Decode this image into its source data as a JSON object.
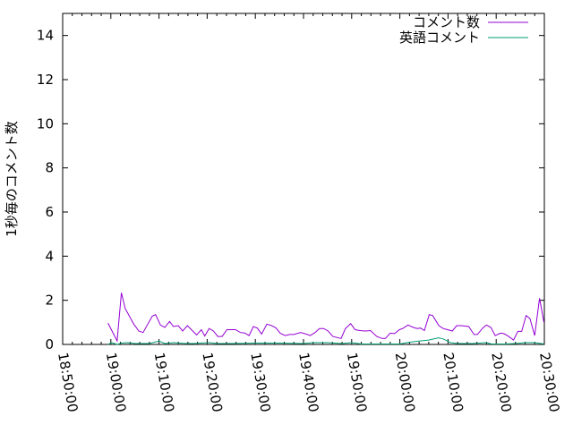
{
  "chart_data": {
    "type": "line",
    "title": "",
    "xlabel": "",
    "ylabel": "1秒毎のコメント数",
    "xlim": [
      "18:50:00",
      "20:30:00"
    ],
    "ylim": [
      0,
      15
    ],
    "x_ticks": [
      "18:50:00",
      "19:00:00",
      "19:10:00",
      "19:20:00",
      "19:30:00",
      "19:40:00",
      "19:50:00",
      "20:00:00",
      "20:10:00",
      "20:20:00",
      "20:30:00"
    ],
    "y_ticks": [
      "0",
      "2",
      "4",
      "6",
      "8",
      "10",
      "12",
      "14"
    ],
    "grid": false,
    "legend_position": "top-right",
    "series": [
      {
        "name": "コメント数",
        "color": "#9400d3",
        "points": [
          [
            "18:59:24",
            0.97
          ],
          [
            "19:01:18",
            0.16
          ],
          [
            "19:02:12",
            2.34
          ],
          [
            "19:03:00",
            1.62
          ],
          [
            "19:04:42",
            0.94
          ],
          [
            "19:05:48",
            0.61
          ],
          [
            "19:06:42",
            0.54
          ],
          [
            "19:08:36",
            1.28
          ],
          [
            "19:09:18",
            1.35
          ],
          [
            "19:10:18",
            0.88
          ],
          [
            "19:11:12",
            0.77
          ],
          [
            "19:12:12",
            1.04
          ],
          [
            "19:13:00",
            0.81
          ],
          [
            "19:14:00",
            0.85
          ],
          [
            "19:14:54",
            0.61
          ],
          [
            "19:15:54",
            0.85
          ],
          [
            "19:17:48",
            0.43
          ],
          [
            "19:18:48",
            0.67
          ],
          [
            "19:19:30",
            0.38
          ],
          [
            "19:20:24",
            0.72
          ],
          [
            "19:21:18",
            0.61
          ],
          [
            "19:22:12",
            0.36
          ],
          [
            "19:23:06",
            0.36
          ],
          [
            "19:24:06",
            0.67
          ],
          [
            "19:25:54",
            0.67
          ],
          [
            "19:26:54",
            0.54
          ],
          [
            "19:27:48",
            0.52
          ],
          [
            "19:28:42",
            0.4
          ],
          [
            "19:29:36",
            0.81
          ],
          [
            "19:30:24",
            0.74
          ],
          [
            "19:31:18",
            0.47
          ],
          [
            "19:32:24",
            0.92
          ],
          [
            "19:33:24",
            0.85
          ],
          [
            "19:34:18",
            0.74
          ],
          [
            "19:35:12",
            0.5
          ],
          [
            "19:36:12",
            0.4
          ],
          [
            "19:37:06",
            0.45
          ],
          [
            "19:38:00",
            0.45
          ],
          [
            "19:39:24",
            0.54
          ],
          [
            "19:40:30",
            0.47
          ],
          [
            "19:41:24",
            0.4
          ],
          [
            "19:42:24",
            0.54
          ],
          [
            "19:43:18",
            0.72
          ],
          [
            "19:44:12",
            0.72
          ],
          [
            "19:45:06",
            0.61
          ],
          [
            "19:46:06",
            0.36
          ],
          [
            "19:47:48",
            0.27
          ],
          [
            "19:48:42",
            0.72
          ],
          [
            "19:49:48",
            0.94
          ],
          [
            "19:50:42",
            0.67
          ],
          [
            "19:51:42",
            0.63
          ],
          [
            "19:52:54",
            0.61
          ],
          [
            "19:53:54",
            0.63
          ],
          [
            "19:55:12",
            0.36
          ],
          [
            "19:56:18",
            0.27
          ],
          [
            "19:57:00",
            0.27
          ],
          [
            "19:58:00",
            0.51
          ],
          [
            "19:58:54",
            0.49
          ],
          [
            "19:59:54",
            0.67
          ],
          [
            "20:00:36",
            0.72
          ],
          [
            "20:01:42",
            0.88
          ],
          [
            "20:02:48",
            0.77
          ],
          [
            "20:03:36",
            0.72
          ],
          [
            "20:04:18",
            0.74
          ],
          [
            "20:05:06",
            0.63
          ],
          [
            "20:06:06",
            1.35
          ],
          [
            "20:06:48",
            1.31
          ],
          [
            "20:08:06",
            0.85
          ],
          [
            "20:09:00",
            0.72
          ],
          [
            "20:09:54",
            0.67
          ],
          [
            "20:10:54",
            0.61
          ],
          [
            "20:11:48",
            0.85
          ],
          [
            "20:12:48",
            0.85
          ],
          [
            "20:14:18",
            0.81
          ],
          [
            "20:15:24",
            0.45
          ],
          [
            "20:16:06",
            0.45
          ],
          [
            "20:17:12",
            0.74
          ],
          [
            "20:18:00",
            0.88
          ],
          [
            "20:18:54",
            0.77
          ],
          [
            "20:19:48",
            0.4
          ],
          [
            "20:20:54",
            0.51
          ],
          [
            "20:21:36",
            0.49
          ],
          [
            "20:22:36",
            0.36
          ],
          [
            "20:23:36",
            0.2
          ],
          [
            "20:24:30",
            0.59
          ],
          [
            "20:25:18",
            0.59
          ],
          [
            "20:26:12",
            1.31
          ],
          [
            "20:27:00",
            1.17
          ],
          [
            "20:28:00",
            0.4
          ],
          [
            "20:29:00",
            2.09
          ],
          [
            "20:29:54",
            1.01
          ]
        ]
      },
      {
        "name": "英語コメント",
        "color": "#009e73",
        "points": [
          [
            "18:59:24",
            0
          ],
          [
            "19:00:12",
            0.08
          ],
          [
            "19:01:18",
            0
          ],
          [
            "19:02:12",
            0.06
          ],
          [
            "19:03:30",
            0.08
          ],
          [
            "19:05:00",
            0.04
          ],
          [
            "19:08:00",
            0.04
          ],
          [
            "19:10:00",
            0.15
          ],
          [
            "19:11:12",
            0.04
          ],
          [
            "19:13:00",
            0.08
          ],
          [
            "19:15:00",
            0.05
          ],
          [
            "19:17:00",
            0.04
          ],
          [
            "19:20:24",
            0.08
          ],
          [
            "19:22:00",
            0.04
          ],
          [
            "19:25:00",
            0.04
          ],
          [
            "19:30:00",
            0.06
          ],
          [
            "19:35:00",
            0.06
          ],
          [
            "19:40:00",
            0.04
          ],
          [
            "19:42:00",
            0.08
          ],
          [
            "19:45:00",
            0.08
          ],
          [
            "19:48:00",
            0.04
          ],
          [
            "19:50:00",
            0.08
          ],
          [
            "19:52:00",
            0.02
          ],
          [
            "19:55:00",
            0.02
          ],
          [
            "20:00:00",
            0.02
          ],
          [
            "20:02:00",
            0.1
          ],
          [
            "20:04:00",
            0.15
          ],
          [
            "20:06:00",
            0.2
          ],
          [
            "20:08:00",
            0.3
          ],
          [
            "20:09:00",
            0.25
          ],
          [
            "20:10:30",
            0.08
          ],
          [
            "20:12:00",
            0.04
          ],
          [
            "20:15:00",
            0.04
          ],
          [
            "20:18:00",
            0.08
          ],
          [
            "20:19:00",
            0.02
          ],
          [
            "20:22:00",
            0.02
          ],
          [
            "20:24:00",
            0.04
          ],
          [
            "20:26:00",
            0.08
          ],
          [
            "20:28:00",
            0.08
          ],
          [
            "20:29:54",
            0.02
          ]
        ]
      }
    ]
  }
}
